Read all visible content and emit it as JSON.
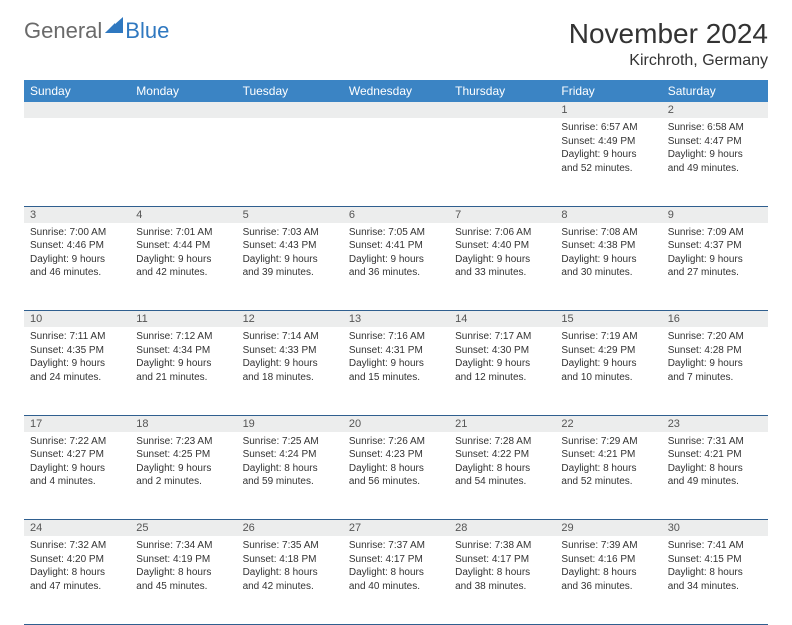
{
  "logo": {
    "general": "General",
    "blue": "Blue",
    "icon_color": "#2f78c0"
  },
  "header": {
    "month_title": "November 2024",
    "location": "Kirchroth, Germany"
  },
  "colors": {
    "header_bg": "#3b84c4",
    "header_text": "#ffffff",
    "daynum_bg": "#eceded",
    "border": "#2f5f8f",
    "text": "#333333"
  },
  "weekdays": [
    "Sunday",
    "Monday",
    "Tuesday",
    "Wednesday",
    "Thursday",
    "Friday",
    "Saturday"
  ],
  "weeks": [
    [
      null,
      null,
      null,
      null,
      null,
      {
        "n": "1",
        "sr": "6:57 AM",
        "ss": "4:49 PM",
        "dl": "9 hours and 52 minutes."
      },
      {
        "n": "2",
        "sr": "6:58 AM",
        "ss": "4:47 PM",
        "dl": "9 hours and 49 minutes."
      }
    ],
    [
      {
        "n": "3",
        "sr": "7:00 AM",
        "ss": "4:46 PM",
        "dl": "9 hours and 46 minutes."
      },
      {
        "n": "4",
        "sr": "7:01 AM",
        "ss": "4:44 PM",
        "dl": "9 hours and 42 minutes."
      },
      {
        "n": "5",
        "sr": "7:03 AM",
        "ss": "4:43 PM",
        "dl": "9 hours and 39 minutes."
      },
      {
        "n": "6",
        "sr": "7:05 AM",
        "ss": "4:41 PM",
        "dl": "9 hours and 36 minutes."
      },
      {
        "n": "7",
        "sr": "7:06 AM",
        "ss": "4:40 PM",
        "dl": "9 hours and 33 minutes."
      },
      {
        "n": "8",
        "sr": "7:08 AM",
        "ss": "4:38 PM",
        "dl": "9 hours and 30 minutes."
      },
      {
        "n": "9",
        "sr": "7:09 AM",
        "ss": "4:37 PM",
        "dl": "9 hours and 27 minutes."
      }
    ],
    [
      {
        "n": "10",
        "sr": "7:11 AM",
        "ss": "4:35 PM",
        "dl": "9 hours and 24 minutes."
      },
      {
        "n": "11",
        "sr": "7:12 AM",
        "ss": "4:34 PM",
        "dl": "9 hours and 21 minutes."
      },
      {
        "n": "12",
        "sr": "7:14 AM",
        "ss": "4:33 PM",
        "dl": "9 hours and 18 minutes."
      },
      {
        "n": "13",
        "sr": "7:16 AM",
        "ss": "4:31 PM",
        "dl": "9 hours and 15 minutes."
      },
      {
        "n": "14",
        "sr": "7:17 AM",
        "ss": "4:30 PM",
        "dl": "9 hours and 12 minutes."
      },
      {
        "n": "15",
        "sr": "7:19 AM",
        "ss": "4:29 PM",
        "dl": "9 hours and 10 minutes."
      },
      {
        "n": "16",
        "sr": "7:20 AM",
        "ss": "4:28 PM",
        "dl": "9 hours and 7 minutes."
      }
    ],
    [
      {
        "n": "17",
        "sr": "7:22 AM",
        "ss": "4:27 PM",
        "dl": "9 hours and 4 minutes."
      },
      {
        "n": "18",
        "sr": "7:23 AM",
        "ss": "4:25 PM",
        "dl": "9 hours and 2 minutes."
      },
      {
        "n": "19",
        "sr": "7:25 AM",
        "ss": "4:24 PM",
        "dl": "8 hours and 59 minutes."
      },
      {
        "n": "20",
        "sr": "7:26 AM",
        "ss": "4:23 PM",
        "dl": "8 hours and 56 minutes."
      },
      {
        "n": "21",
        "sr": "7:28 AM",
        "ss": "4:22 PM",
        "dl": "8 hours and 54 minutes."
      },
      {
        "n": "22",
        "sr": "7:29 AM",
        "ss": "4:21 PM",
        "dl": "8 hours and 52 minutes."
      },
      {
        "n": "23",
        "sr": "7:31 AM",
        "ss": "4:21 PM",
        "dl": "8 hours and 49 minutes."
      }
    ],
    [
      {
        "n": "24",
        "sr": "7:32 AM",
        "ss": "4:20 PM",
        "dl": "8 hours and 47 minutes."
      },
      {
        "n": "25",
        "sr": "7:34 AM",
        "ss": "4:19 PM",
        "dl": "8 hours and 45 minutes."
      },
      {
        "n": "26",
        "sr": "7:35 AM",
        "ss": "4:18 PM",
        "dl": "8 hours and 42 minutes."
      },
      {
        "n": "27",
        "sr": "7:37 AM",
        "ss": "4:17 PM",
        "dl": "8 hours and 40 minutes."
      },
      {
        "n": "28",
        "sr": "7:38 AM",
        "ss": "4:17 PM",
        "dl": "8 hours and 38 minutes."
      },
      {
        "n": "29",
        "sr": "7:39 AM",
        "ss": "4:16 PM",
        "dl": "8 hours and 36 minutes."
      },
      {
        "n": "30",
        "sr": "7:41 AM",
        "ss": "4:15 PM",
        "dl": "8 hours and 34 minutes."
      }
    ]
  ],
  "labels": {
    "sunrise": "Sunrise: ",
    "sunset": "Sunset: ",
    "daylight": "Daylight: "
  }
}
